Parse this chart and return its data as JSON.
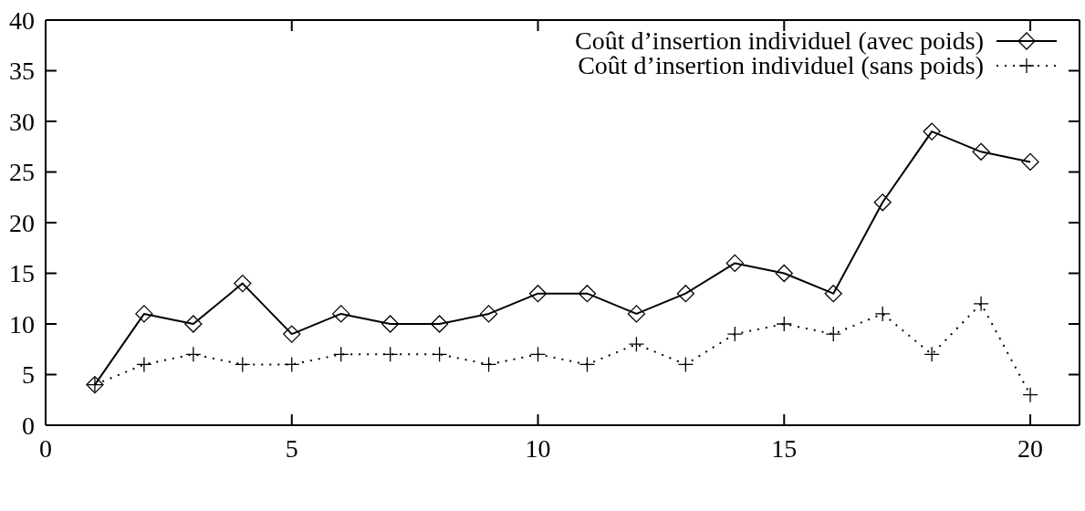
{
  "chart_data": {
    "type": "line",
    "x": [
      1,
      2,
      3,
      4,
      5,
      6,
      7,
      8,
      9,
      10,
      11,
      12,
      13,
      14,
      15,
      16,
      17,
      18,
      19,
      20
    ],
    "xlim": [
      0,
      21
    ],
    "xticks": [
      0,
      5,
      10,
      15,
      20
    ],
    "ylim": [
      0,
      40
    ],
    "yticks": [
      0,
      5,
      10,
      15,
      20,
      25,
      30,
      35,
      40
    ],
    "legend": "top right",
    "series": [
      {
        "name": "Coût d’insertion individuel (avec poids)",
        "color": "#000000",
        "marker": "diamond",
        "line_style": "solid",
        "values": [
          4,
          11,
          10,
          14,
          9,
          11,
          10,
          10,
          11,
          13,
          13,
          11,
          13,
          16,
          15,
          13,
          22,
          29,
          27,
          26
        ]
      },
      {
        "name": "Coût d’insertion individuel (sans poids)",
        "color": "#000000",
        "marker": "cross",
        "line_style": "dotted",
        "values": [
          4,
          6,
          7,
          6,
          6,
          7,
          7,
          7,
          6,
          7,
          6,
          8,
          6,
          9,
          10,
          9,
          11,
          7,
          12,
          3
        ]
      }
    ]
  }
}
